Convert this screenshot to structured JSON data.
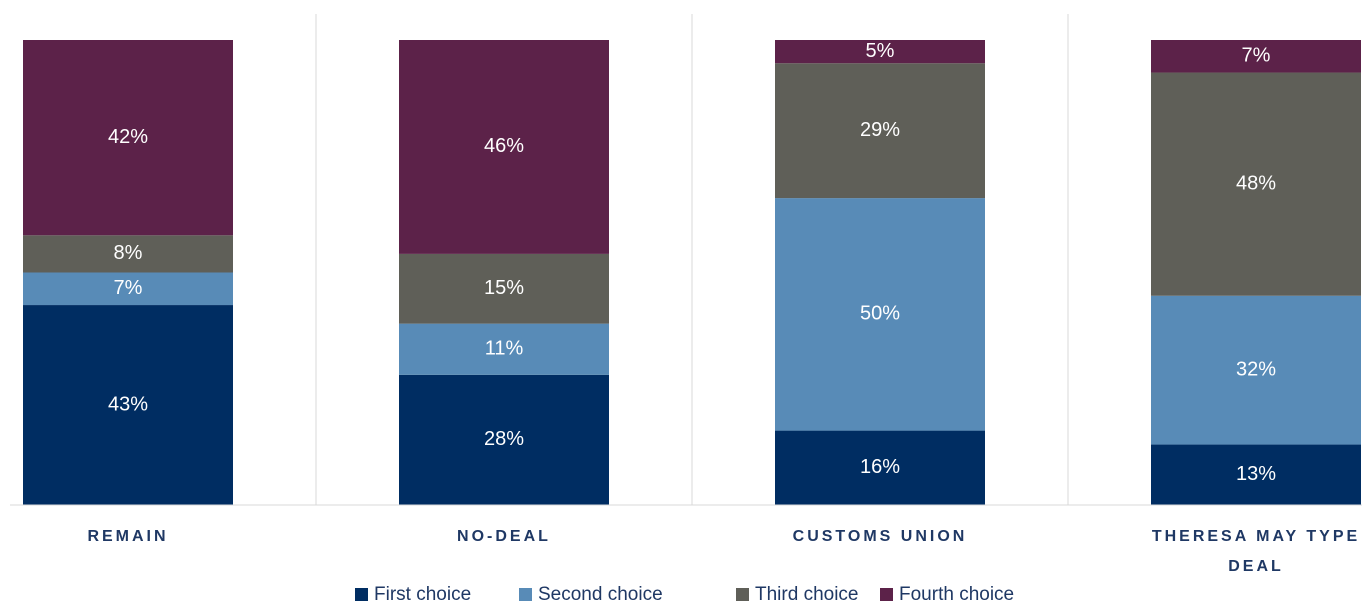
{
  "chart_data": {
    "type": "stacked_bar",
    "categories": [
      "REMAIN",
      "NO-DEAL",
      "CUSTOMS UNION",
      "THERESA MAY TYPE DEAL"
    ],
    "series": [
      {
        "name": "First choice",
        "color": "#002d62",
        "values": [
          43,
          28,
          16,
          13
        ],
        "value_labels": [
          "43%",
          "28%",
          "16%",
          "13%"
        ]
      },
      {
        "name": "Second choice",
        "color": "#588bb7",
        "values": [
          7,
          11,
          50,
          32
        ],
        "value_labels": [
          "7%",
          "11%",
          "50%",
          "32%"
        ]
      },
      {
        "name": "Third choice",
        "color": "#5f5f58",
        "values": [
          8,
          15,
          29,
          48
        ],
        "value_labels": [
          "8%",
          "15%",
          "29%",
          "48%"
        ]
      },
      {
        "name": "Fourth choice",
        "color": "#5c2249",
        "values": [
          42,
          46,
          5,
          7
        ],
        "value_labels": [
          "42%",
          "46%",
          "5%",
          "7%"
        ]
      }
    ],
    "ylim": [
      0,
      100
    ],
    "legend": "bottom"
  }
}
